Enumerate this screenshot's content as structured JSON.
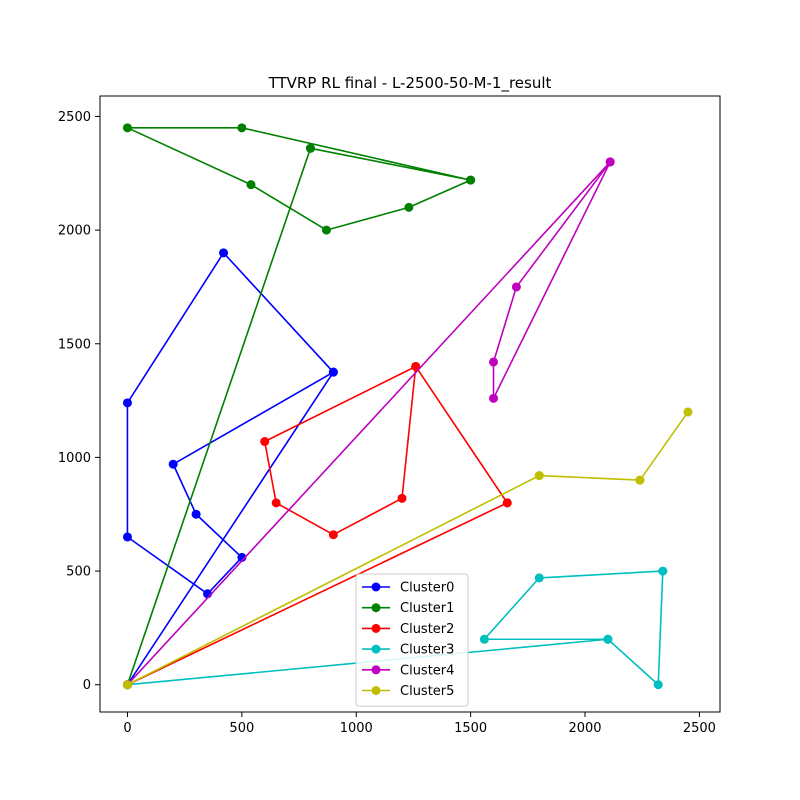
{
  "chart_data": {
    "type": "line",
    "title": "TTVRP RL final - L-2500-50-M-1_result",
    "xlabel": "",
    "ylabel": "",
    "xlim": [
      -120,
      2590
    ],
    "ylim": [
      -120,
      2590
    ],
    "x_ticks": [
      0,
      500,
      1000,
      1500,
      2000,
      2500
    ],
    "y_ticks": [
      0,
      500,
      1000,
      1500,
      2000,
      2500
    ],
    "grid": false,
    "legend_position": "lower-center",
    "series": [
      {
        "name": "Cluster0",
        "color": "#0000ff",
        "points": [
          [
            0,
            0
          ],
          [
            900,
            1375
          ],
          [
            420,
            1900
          ],
          [
            0,
            1240
          ],
          [
            0,
            650
          ],
          [
            350,
            400
          ],
          [
            500,
            560
          ],
          [
            300,
            750
          ],
          [
            200,
            970
          ],
          [
            900,
            1375
          ],
          [
            0,
            0
          ]
        ]
      },
      {
        "name": "Cluster1",
        "color": "#008000",
        "points": [
          [
            0,
            0
          ],
          [
            800,
            2360
          ],
          [
            1500,
            2220
          ],
          [
            1230,
            2100
          ],
          [
            870,
            2000
          ],
          [
            540,
            2200
          ],
          [
            0,
            2450
          ],
          [
            500,
            2450
          ],
          [
            1500,
            2220
          ],
          [
            800,
            2360
          ],
          [
            0,
            0
          ]
        ]
      },
      {
        "name": "Cluster2",
        "color": "#ff0000",
        "points": [
          [
            0,
            0
          ],
          [
            1660,
            800
          ],
          [
            1260,
            1400
          ],
          [
            600,
            1070
          ],
          [
            650,
            800
          ],
          [
            900,
            660
          ],
          [
            1200,
            820
          ],
          [
            1260,
            1400
          ],
          [
            1660,
            800
          ],
          [
            0,
            0
          ]
        ]
      },
      {
        "name": "Cluster3",
        "color": "#00bfbf",
        "points": [
          [
            0,
            0
          ],
          [
            2100,
            200
          ],
          [
            1560,
            200
          ],
          [
            1800,
            470
          ],
          [
            2340,
            500
          ],
          [
            2320,
            0
          ],
          [
            2100,
            200
          ],
          [
            0,
            0
          ]
        ]
      },
      {
        "name": "Cluster4",
        "color": "#bf00bf",
        "points": [
          [
            0,
            0
          ],
          [
            2110,
            2300
          ],
          [
            1600,
            1260
          ],
          [
            1600,
            1420
          ],
          [
            1700,
            1750
          ],
          [
            2110,
            2300
          ],
          [
            0,
            0
          ]
        ]
      },
      {
        "name": "Cluster5",
        "color": "#bfbf00",
        "points": [
          [
            0,
            0
          ],
          [
            1800,
            920
          ],
          [
            2240,
            900
          ],
          [
            2450,
            1200
          ],
          [
            2240,
            900
          ],
          [
            1800,
            920
          ],
          [
            0,
            0
          ]
        ]
      }
    ]
  }
}
